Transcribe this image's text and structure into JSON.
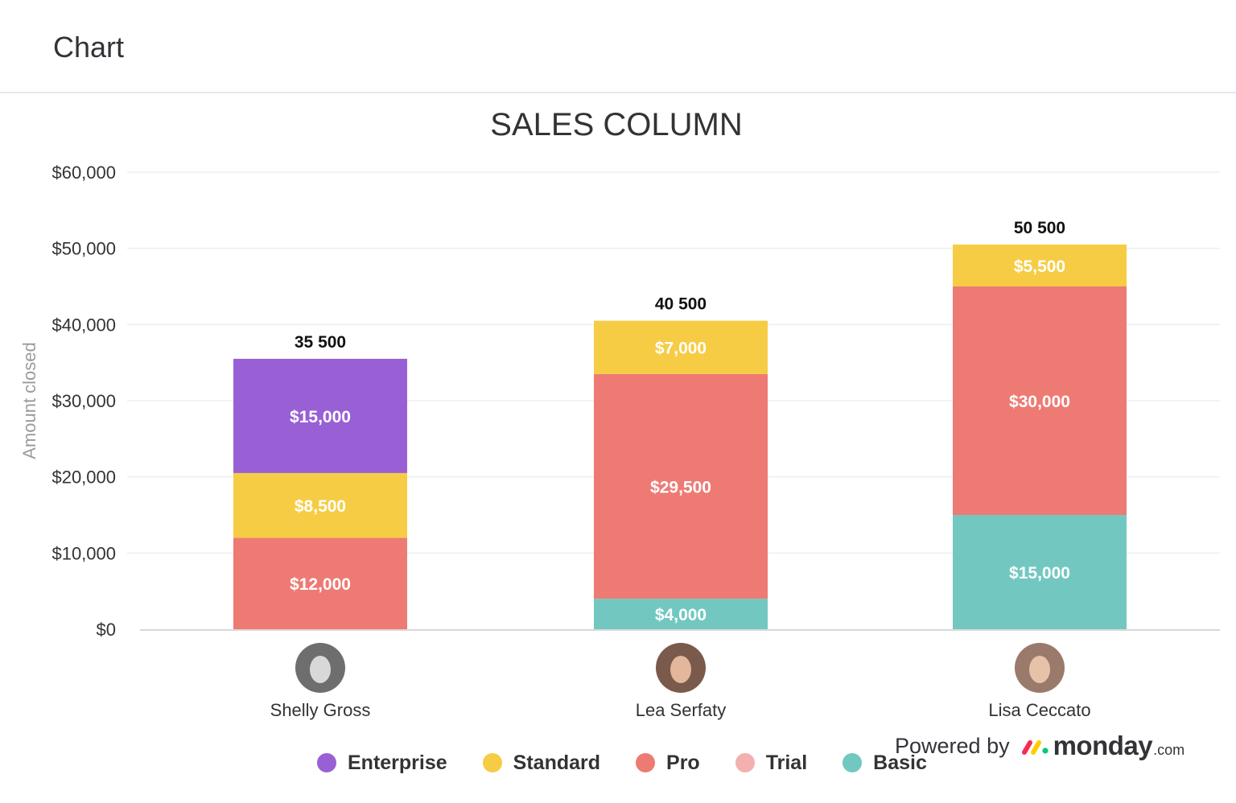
{
  "header": {
    "title": "Chart"
  },
  "chart_data": {
    "type": "bar",
    "stacked": true,
    "title": "SALES COLUMN",
    "xlabel": "",
    "ylabel": "Amount closed",
    "ylim": [
      0,
      60000
    ],
    "yticks": [
      "$0",
      "$10,000",
      "$20,000",
      "$30,000",
      "$40,000",
      "$50,000",
      "$60,000"
    ],
    "ytick_values": [
      0,
      10000,
      20000,
      30000,
      40000,
      50000,
      60000
    ],
    "grid": true,
    "legend_position": "bottom",
    "categories": [
      "Shelly Gross",
      "Lea Serfaty",
      "Lisa Ceccato"
    ],
    "totals": [
      "35 500",
      "40 500",
      "50 500"
    ],
    "series": [
      {
        "name": "Basic",
        "color": "#72c8c1",
        "values": [
          0,
          4000,
          15000
        ],
        "labels": [
          "",
          "$4,000",
          "$15,000"
        ]
      },
      {
        "name": "Trial",
        "color": "#f2b1ae",
        "values": [
          0,
          0,
          0
        ],
        "labels": [
          "",
          "",
          ""
        ]
      },
      {
        "name": "Pro",
        "color": "#ee7a74",
        "values": [
          12000,
          29500,
          30000
        ],
        "labels": [
          "$12,000",
          "$29,500",
          "$30,000"
        ]
      },
      {
        "name": "Standard",
        "color": "#f6cc45",
        "values": [
          8500,
          7000,
          5500
        ],
        "labels": [
          "$8,500",
          "$7,000",
          "$5,500"
        ]
      },
      {
        "name": "Enterprise",
        "color": "#9960d6",
        "values": [
          15000,
          0,
          0
        ],
        "labels": [
          "$15,000",
          "",
          ""
        ]
      }
    ]
  },
  "legend": {
    "items": [
      {
        "label": "Enterprise",
        "color": "#9960d6"
      },
      {
        "label": "Standard",
        "color": "#f6cc45"
      },
      {
        "label": "Pro",
        "color": "#ee7a74"
      },
      {
        "label": "Trial",
        "color": "#f2b1ae"
      },
      {
        "label": "Basic",
        "color": "#72c8c1"
      }
    ]
  },
  "branding": {
    "powered_by": "Powered by",
    "wordmark": "monday",
    "suffix": ".com",
    "icon": "monday-logo-icon"
  },
  "avatars": [
    {
      "name": "Shelly Gross",
      "icon": "avatar-shelly-gross"
    },
    {
      "name": "Lea Serfaty",
      "icon": "avatar-lea-serfaty"
    },
    {
      "name": "Lisa Ceccato",
      "icon": "avatar-lisa-ceccato"
    }
  ]
}
